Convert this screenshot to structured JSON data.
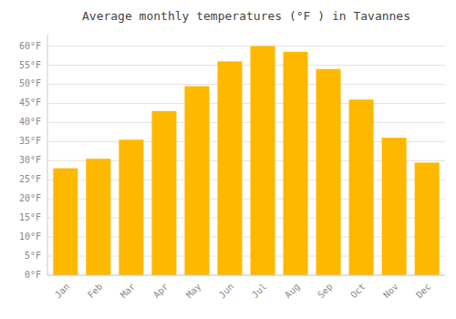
{
  "chart_data": {
    "type": "bar",
    "title": "Average monthly temperatures (°F ) in Tavannes",
    "categories": [
      "Jan",
      "Feb",
      "Mar",
      "Apr",
      "May",
      "Jun",
      "Jul",
      "Aug",
      "Sep",
      "Oct",
      "Nov",
      "Dec"
    ],
    "values": [
      28.0,
      30.5,
      35.5,
      43.0,
      49.5,
      56.0,
      60.0,
      58.5,
      54.0,
      46.0,
      36.0,
      29.5
    ],
    "color": "#FFB800",
    "ylim": [
      0,
      63
    ],
    "yticks": [
      {
        "value": 0,
        "label": "0°F"
      },
      {
        "value": 5,
        "label": "5°F"
      },
      {
        "value": 10,
        "label": "10°F"
      },
      {
        "value": 15,
        "label": "15°F"
      },
      {
        "value": 20,
        "label": "20°F"
      },
      {
        "value": 25,
        "label": "25°F"
      },
      {
        "value": 30,
        "label": "30°F"
      },
      {
        "value": 35,
        "label": "35°F"
      },
      {
        "value": 40,
        "label": "40°F"
      },
      {
        "value": 45,
        "label": "45°F"
      },
      {
        "value": 50,
        "label": "50°F"
      },
      {
        "value": 55,
        "label": "55°F"
      },
      {
        "value": 60,
        "label": "60°F"
      }
    ],
    "grid": true
  }
}
